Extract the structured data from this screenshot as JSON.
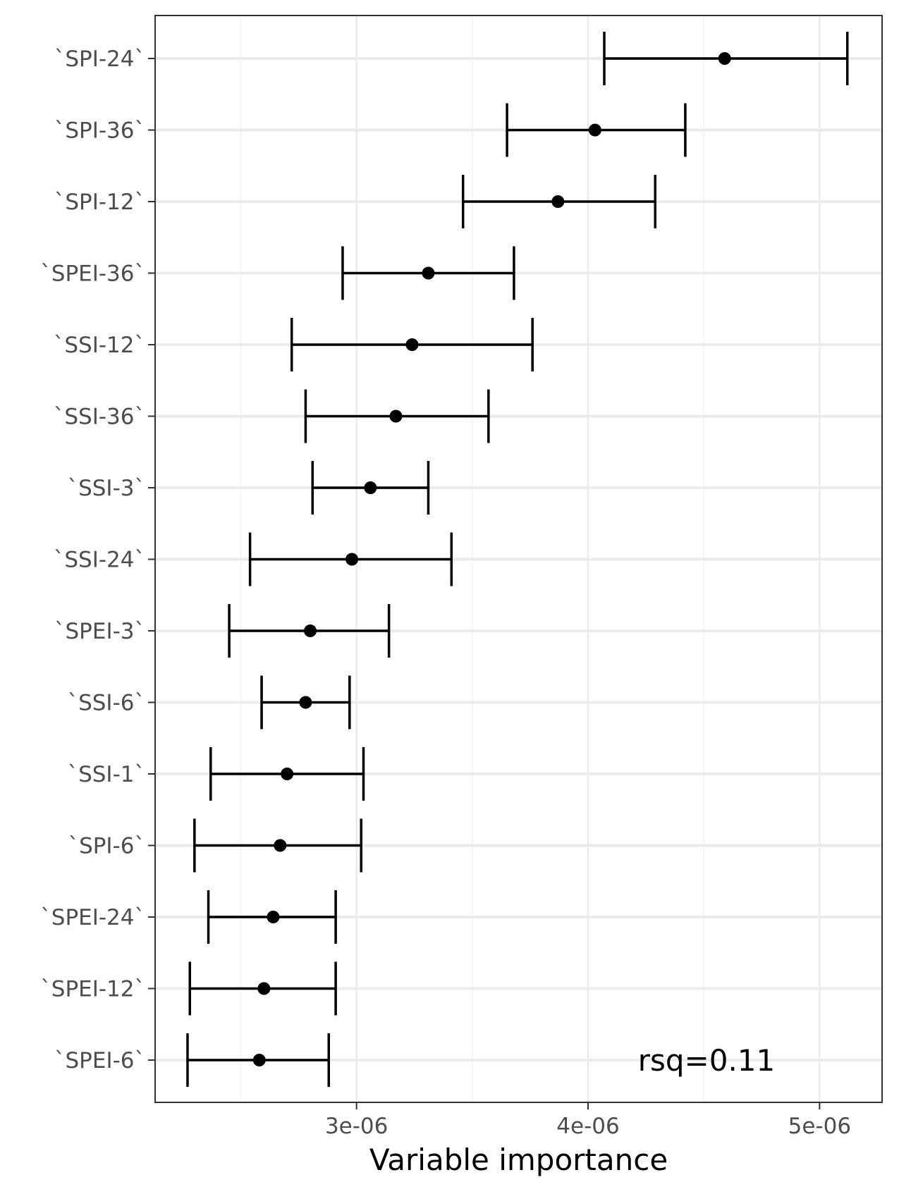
{
  "chart_data": {
    "type": "scatter",
    "subtype": "point-with-errorbars",
    "orientation": "horizontal",
    "xlabel": "Variable importance",
    "ylabel": "",
    "xlim": [
      2.13e-06,
      5.27e-06
    ],
    "x_ticks": [
      {
        "value": 3e-06,
        "label": "3e-06"
      },
      {
        "value": 4e-06,
        "label": "4e-06"
      },
      {
        "value": 5e-06,
        "label": "5e-06"
      }
    ],
    "x_minor_ticks": [
      2.5e-06,
      3.5e-06,
      4.5e-06
    ],
    "grid": true,
    "annotation": "rsq=0.11",
    "categories": [
      "`SPI-24`",
      "`SPI-36`",
      "`SPI-12`",
      "`SPEI-36`",
      "`SSI-12`",
      "`SSI-36`",
      "`SSI-3`",
      "`SSI-24`",
      "`SPEI-3`",
      "`SSI-6`",
      "`SSI-1`",
      "`SPI-6`",
      "`SPEI-24`",
      "`SPEI-12`",
      "`SPEI-6`"
    ],
    "points": [
      {
        "label": "`SPI-24`",
        "value": 4.59e-06,
        "lower": 4.07e-06,
        "upper": 5.12e-06
      },
      {
        "label": "`SPI-36`",
        "value": 4.03e-06,
        "lower": 3.65e-06,
        "upper": 4.42e-06
      },
      {
        "label": "`SPI-12`",
        "value": 3.87e-06,
        "lower": 3.46e-06,
        "upper": 4.29e-06
      },
      {
        "label": "`SPEI-36`",
        "value": 3.31e-06,
        "lower": 2.94e-06,
        "upper": 3.68e-06
      },
      {
        "label": "`SSI-12`",
        "value": 3.24e-06,
        "lower": 2.72e-06,
        "upper": 3.76e-06
      },
      {
        "label": "`SSI-36`",
        "value": 3.17e-06,
        "lower": 2.78e-06,
        "upper": 3.57e-06
      },
      {
        "label": "`SSI-3`",
        "value": 3.06e-06,
        "lower": 2.81e-06,
        "upper": 3.31e-06
      },
      {
        "label": "`SSI-24`",
        "value": 2.98e-06,
        "lower": 2.54e-06,
        "upper": 3.41e-06
      },
      {
        "label": "`SPEI-3`",
        "value": 2.8e-06,
        "lower": 2.45e-06,
        "upper": 3.14e-06
      },
      {
        "label": "`SSI-6`",
        "value": 2.78e-06,
        "lower": 2.59e-06,
        "upper": 2.97e-06
      },
      {
        "label": "`SSI-1`",
        "value": 2.7e-06,
        "lower": 2.37e-06,
        "upper": 3.03e-06
      },
      {
        "label": "`SPI-6`",
        "value": 2.67e-06,
        "lower": 2.3e-06,
        "upper": 3.02e-06
      },
      {
        "label": "`SPEI-24`",
        "value": 2.64e-06,
        "lower": 2.36e-06,
        "upper": 2.91e-06
      },
      {
        "label": "`SPEI-12`",
        "value": 2.6e-06,
        "lower": 2.28e-06,
        "upper": 2.91e-06
      },
      {
        "label": "`SPEI-6`",
        "value": 2.58e-06,
        "lower": 2.27e-06,
        "upper": 2.88e-06
      }
    ],
    "colors": {
      "points": "#000000",
      "errorbars": "#000000",
      "grid_major": "#ebebeb",
      "grid_minor": "#f2f2f2",
      "panel_border": "#333333",
      "tick_text": "#4d4d4d"
    }
  }
}
